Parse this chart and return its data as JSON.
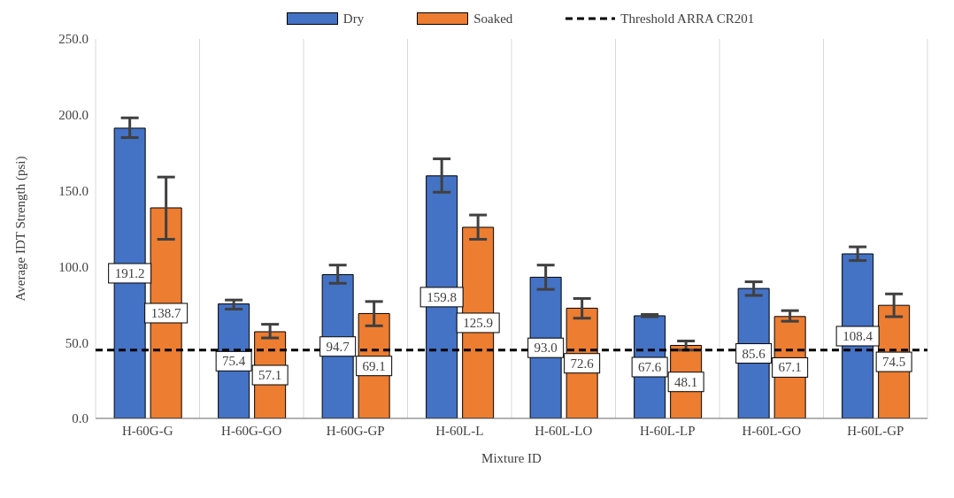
{
  "chart_data": {
    "type": "bar",
    "xlabel": "Mixture ID",
    "ylabel": "Average IDT Strength (psi)",
    "categories": [
      "H-60G-G",
      "H-60G-GO",
      "H-60G-GP",
      "H-60L-L",
      "H-60L-LO",
      "H-60L-LP",
      "H-60L-GO",
      "H-60L-GP"
    ],
    "series": [
      {
        "name": "Dry",
        "color": "#4472c4",
        "values": [
          191.2,
          75.4,
          94.7,
          159.8,
          93.0,
          67.6,
          85.6,
          108.4
        ],
        "value_labels": [
          "191.2",
          "75.4",
          "94.7",
          "159.8",
          "93.0",
          "67.6",
          "85.6",
          "108.4"
        ],
        "errors": [
          [
            185,
            198
          ],
          [
            72,
            78
          ],
          [
            89,
            101
          ],
          [
            149,
            171
          ],
          [
            85,
            101
          ],
          [
            67,
            68.5
          ],
          [
            81,
            90
          ],
          [
            104,
            113
          ]
        ]
      },
      {
        "name": "Soaked",
        "color": "#ed7d31",
        "values": [
          138.7,
          57.1,
          69.1,
          125.9,
          72.6,
          48.1,
          67.1,
          74.5
        ],
        "value_labels": [
          "138.7",
          "57.1",
          "69.1",
          "125.9",
          "72.6",
          "48.1",
          "67.1",
          "74.5"
        ],
        "errors": [
          [
            118,
            159
          ],
          [
            53,
            62
          ],
          [
            61,
            77
          ],
          [
            118,
            134
          ],
          [
            66,
            79
          ],
          [
            45,
            51
          ],
          [
            64,
            71
          ],
          [
            67,
            82
          ]
        ]
      }
    ],
    "ref_lines": [
      {
        "axis": "y",
        "value": 45,
        "label": "Threshold ARRA CR201",
        "color": "#000000",
        "line_style": "dashed"
      }
    ],
    "ylim": [
      0,
      250
    ],
    "yticks": [
      {
        "value": 0,
        "label": "0.0"
      },
      {
        "value": 50,
        "label": "50.0"
      },
      {
        "value": 100,
        "label": "100.0"
      },
      {
        "value": 150,
        "label": "150.0"
      },
      {
        "value": 200,
        "label": "200.0"
      },
      {
        "value": 250,
        "label": "250.0"
      }
    ],
    "grid": "x",
    "legend": "top"
  }
}
